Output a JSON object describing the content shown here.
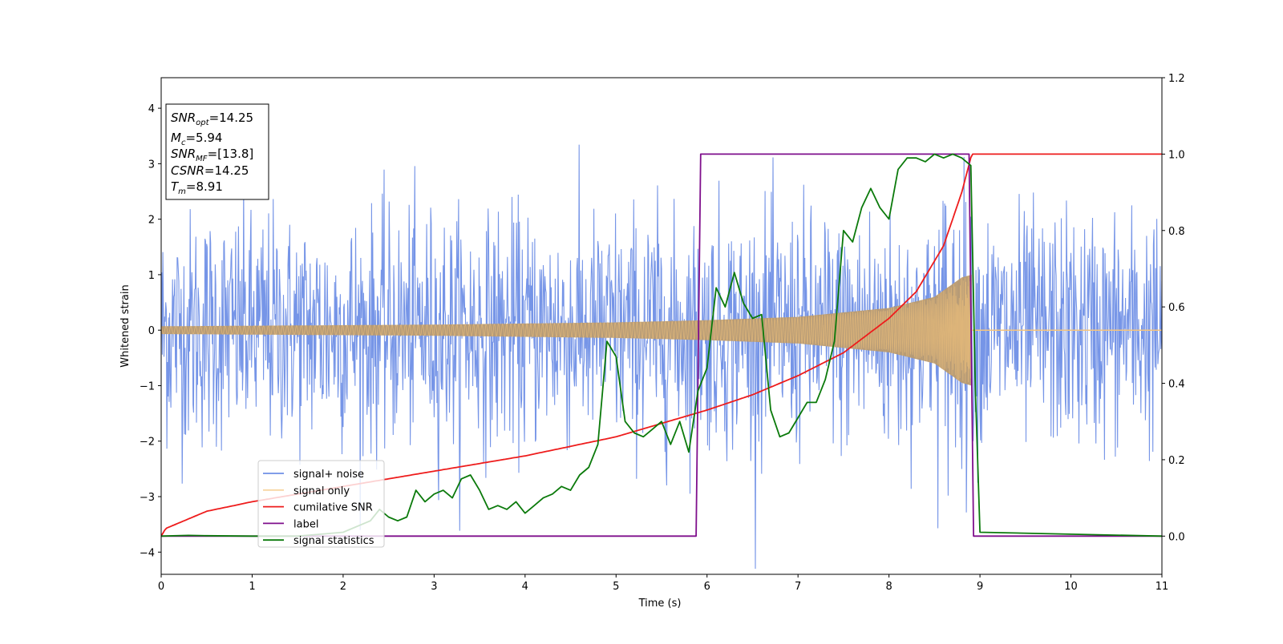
{
  "chart_data": {
    "type": "line",
    "xlabel": "Time (s)",
    "ylabel": "Whitened strain",
    "xlim": [
      0,
      11
    ],
    "ylim": [
      -4.4,
      4.55
    ],
    "y2lim": [
      -0.1,
      1.2
    ],
    "grid": false,
    "legend_placement": "lower-left",
    "x_ticks": [
      0,
      1,
      2,
      3,
      4,
      5,
      6,
      7,
      8,
      9,
      10,
      11
    ],
    "y_ticks": [
      -4,
      -3,
      -2,
      -1,
      0,
      1,
      2,
      3,
      4
    ],
    "y2_ticks": [
      0.0,
      0.2,
      0.4,
      0.6,
      0.8,
      1.0,
      1.2
    ],
    "info_box": {
      "snr_opt": {
        "base": "SNR",
        "sub": "opt",
        "value": "=14.25"
      },
      "mc": {
        "base": "M",
        "sub": "c",
        "value": "=5.94"
      },
      "snr_mf": {
        "base": "SNR",
        "sub": "MF",
        "value": "=[13.8]"
      },
      "csnr": {
        "base": "CSNR",
        "sub": "",
        "value": "=14.25"
      },
      "tm": {
        "base": "T",
        "sub": "m",
        "value": "=8.91"
      }
    },
    "series": [
      {
        "name": "signal+ noise",
        "color": "#6f8fe6",
        "axis": "left",
        "kind": "noisy",
        "noise_std": 1.05,
        "merger_time": 8.91,
        "sample_rate": 160
      },
      {
        "name": "signal only",
        "color": "#f5c47c",
        "axis": "left",
        "kind": "chirp",
        "merger_time": 8.91,
        "envelope": {
          "t": [
            0,
            1,
            2,
            3,
            4,
            5,
            6,
            7,
            8,
            8.5,
            8.8,
            8.91
          ],
          "amp": [
            0.07,
            0.08,
            0.09,
            0.1,
            0.12,
            0.14,
            0.18,
            0.24,
            0.4,
            0.6,
            0.95,
            1.0
          ]
        }
      },
      {
        "name": "cumilative SNR",
        "color": "#ee1c1c",
        "axis": "right",
        "x": [
          0,
          0.05,
          0.5,
          1,
          2,
          3,
          4,
          5,
          6,
          6.5,
          7,
          7.5,
          8,
          8.3,
          8.6,
          8.8,
          8.91,
          11
        ],
        "y": [
          0.0,
          0.02,
          0.065,
          0.09,
          0.13,
          0.17,
          0.21,
          0.26,
          0.33,
          0.37,
          0.42,
          0.48,
          0.57,
          0.64,
          0.76,
          0.9,
          1.0,
          1.0
        ]
      },
      {
        "name": "label",
        "color": "#7f0f8c",
        "axis": "right",
        "x": [
          0,
          5.88,
          5.93,
          8.88,
          8.93,
          11
        ],
        "y": [
          0,
          0,
          1,
          1,
          0,
          0
        ]
      },
      {
        "name": "signal statistics",
        "color": "#0b7a0b",
        "axis": "right",
        "x": [
          0,
          0.3,
          0.5,
          1,
          1.5,
          2,
          2.3,
          2.4,
          2.5,
          2.6,
          2.7,
          2.8,
          2.9,
          3.0,
          3.1,
          3.2,
          3.3,
          3.4,
          3.5,
          3.6,
          3.7,
          3.8,
          3.9,
          4.0,
          4.1,
          4.2,
          4.3,
          4.4,
          4.5,
          4.6,
          4.7,
          4.8,
          4.9,
          5.0,
          5.1,
          5.2,
          5.3,
          5.4,
          5.5,
          5.6,
          5.7,
          5.8,
          5.9,
          6.0,
          6.1,
          6.2,
          6.3,
          6.4,
          6.5,
          6.6,
          6.7,
          6.8,
          6.9,
          7.0,
          7.1,
          7.2,
          7.3,
          7.4,
          7.5,
          7.6,
          7.7,
          7.8,
          7.9,
          8.0,
          8.1,
          8.2,
          8.3,
          8.4,
          8.5,
          8.6,
          8.7,
          8.8,
          8.9,
          8.95,
          9.0,
          11
        ],
        "y": [
          0,
          0.002,
          0.001,
          0,
          0,
          0.01,
          0.04,
          0.07,
          0.05,
          0.04,
          0.05,
          0.12,
          0.09,
          0.11,
          0.12,
          0.1,
          0.15,
          0.16,
          0.12,
          0.07,
          0.08,
          0.07,
          0.09,
          0.06,
          0.08,
          0.1,
          0.11,
          0.13,
          0.12,
          0.16,
          0.18,
          0.24,
          0.51,
          0.47,
          0.3,
          0.27,
          0.26,
          0.28,
          0.3,
          0.24,
          0.3,
          0.22,
          0.38,
          0.44,
          0.65,
          0.6,
          0.69,
          0.61,
          0.57,
          0.58,
          0.33,
          0.26,
          0.27,
          0.31,
          0.35,
          0.35,
          0.41,
          0.51,
          0.8,
          0.77,
          0.86,
          0.91,
          0.86,
          0.83,
          0.96,
          0.99,
          0.99,
          0.98,
          1.0,
          0.99,
          1.0,
          0.99,
          0.97,
          0.38,
          0.01,
          0.0
        ]
      }
    ]
  }
}
